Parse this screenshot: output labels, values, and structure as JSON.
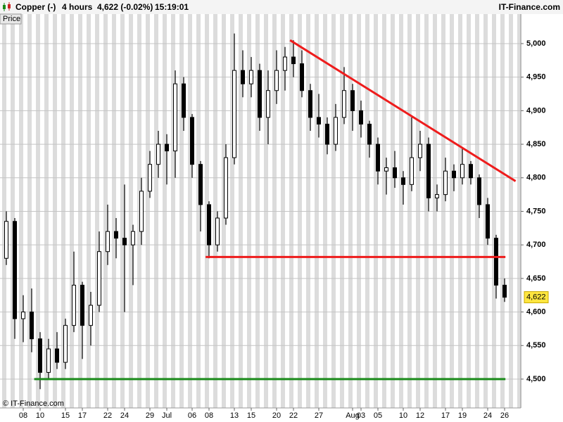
{
  "chart_data": {
    "type": "candlestick",
    "title": "Copper (-)",
    "timeframe": "4 hours",
    "price_change": "4,622 (-0.02%)",
    "time": "15:19:01",
    "source": "IT-Finance.com",
    "panel_label": "Price",
    "footer": "© IT-Finance.com",
    "categories": [
      null,
      null,
      "08",
      null,
      "10",
      null,
      null,
      "15",
      null,
      "17",
      null,
      null,
      "22",
      null,
      "24",
      null,
      null,
      "29",
      null,
      "Jul",
      null,
      null,
      "06",
      null,
      "08",
      null,
      null,
      "13",
      null,
      "15",
      null,
      null,
      "20",
      null,
      "22",
      null,
      null,
      "27",
      null,
      null,
      null,
      "Aug",
      "03",
      null,
      "05",
      null,
      null,
      "10",
      null,
      "12",
      null,
      null,
      "17",
      null,
      "19",
      null,
      null,
      "24",
      null,
      "26"
    ],
    "open": [
      4680,
      4735,
      4590,
      4600,
      4560,
      4510,
      4545,
      4525,
      4580,
      4640,
      4580,
      4610,
      4690,
      4720,
      4710,
      4700,
      4720,
      4780,
      4820,
      4850,
      4840,
      4940,
      4890,
      4820,
      4760,
      4700,
      4740,
      4830,
      4960,
      4940,
      4960,
      4890,
      4930,
      4960,
      4980,
      4970,
      4930,
      4890,
      4880,
      4850,
      4890,
      4930,
      4900,
      4880,
      4850,
      4810,
      4815,
      4800,
      4790,
      4830,
      4850,
      4770,
      4775,
      4810,
      4800,
      4820,
      4800,
      4760,
      4710,
      4640
    ],
    "high": [
      4750,
      4740,
      4625,
      4635,
      4570,
      4560,
      4570,
      4590,
      4690,
      4645,
      4630,
      4720,
      4760,
      4740,
      4790,
      4730,
      4800,
      4840,
      4870,
      4865,
      4960,
      4950,
      4895,
      4825,
      4765,
      4750,
      4850,
      5015,
      4990,
      4980,
      4970,
      4960,
      4990,
      4995,
      5005,
      4990,
      4940,
      4925,
      4890,
      4910,
      4965,
      4940,
      4915,
      4885,
      4860,
      4830,
      4840,
      4810,
      4890,
      4870,
      4860,
      4790,
      4830,
      4820,
      4845,
      4825,
      4805,
      4770,
      4715,
      4650
    ],
    "low": [
      4670,
      4560,
      4555,
      4540,
      4485,
      4500,
      4515,
      4515,
      4570,
      4530,
      4550,
      4600,
      4670,
      4680,
      4600,
      4640,
      4700,
      4770,
      4800,
      4790,
      4800,
      4870,
      4800,
      4720,
      4680,
      4690,
      4730,
      4820,
      4920,
      4920,
      4870,
      4850,
      4910,
      4930,
      4950,
      4920,
      4870,
      4860,
      4835,
      4840,
      4880,
      4870,
      4860,
      4830,
      4790,
      4775,
      4785,
      4760,
      4780,
      4810,
      4750,
      4750,
      4765,
      4780,
      4790,
      4790,
      4740,
      4700,
      4620,
      4615
    ],
    "close": [
      4735,
      4590,
      4600,
      4560,
      4510,
      4545,
      4525,
      4580,
      4640,
      4580,
      4610,
      4690,
      4720,
      4710,
      4700,
      4720,
      4780,
      4820,
      4850,
      4840,
      4940,
      4890,
      4820,
      4760,
      4700,
      4740,
      4830,
      4960,
      4940,
      4960,
      4890,
      4930,
      4960,
      4980,
      4970,
      4930,
      4890,
      4880,
      4850,
      4890,
      4930,
      4900,
      4880,
      4850,
      4810,
      4815,
      4800,
      4790,
      4830,
      4850,
      4770,
      4775,
      4810,
      4800,
      4820,
      4800,
      4760,
      4710,
      4640,
      4622
    ],
    "ylim": [
      4457,
      5044
    ],
    "yticks": [
      {
        "value": 4500,
        "label": "4,500"
      },
      {
        "value": 4550,
        "label": "4,550"
      },
      {
        "value": 4600,
        "label": "4,600"
      },
      {
        "value": 4650,
        "label": "4,650"
      },
      {
        "value": 4700,
        "label": "4,700"
      },
      {
        "value": 4750,
        "label": "4,750"
      },
      {
        "value": 4800,
        "label": "4,800"
      },
      {
        "value": 4850,
        "label": "4,850"
      },
      {
        "value": 4900,
        "label": "4,900"
      },
      {
        "value": 4950,
        "label": "4,950"
      },
      {
        "value": 5000,
        "label": "5,000"
      }
    ],
    "grid": true,
    "last_price": {
      "value": 4622,
      "label": "4,622"
    },
    "lines": [
      {
        "color": "#ee1c1c",
        "x": [
          33.6,
          60.3
        ],
        "y": [
          5005,
          4795
        ]
      },
      {
        "color": "#ee1c1c",
        "x": [
          23.6,
          59.1
        ],
        "y": [
          4682,
          4682
        ]
      },
      {
        "color": "#1a8a1a",
        "x": [
          3.3,
          59.1
        ],
        "y": [
          4500,
          4500
        ]
      }
    ]
  }
}
